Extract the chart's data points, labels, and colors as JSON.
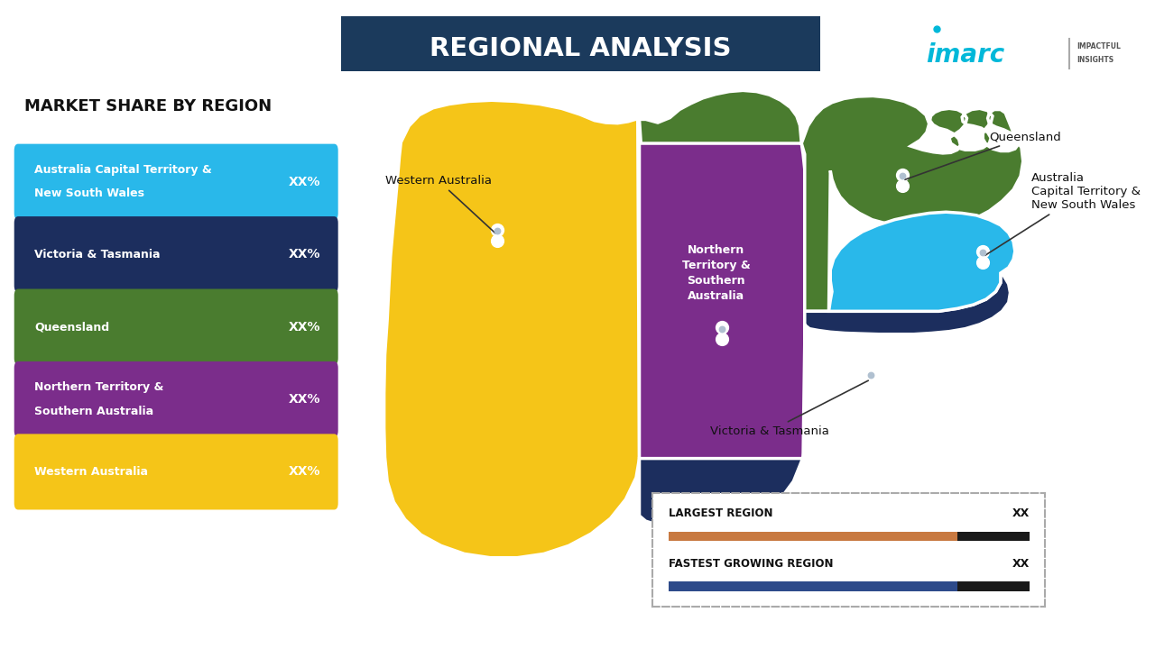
{
  "title": "REGIONAL ANALYSIS",
  "title_bg_color": "#1b3a5c",
  "title_text_color": "#ffffff",
  "background_color": "#ffffff",
  "left_panel_title": "MARKET SHARE BY REGION",
  "regions": [
    {
      "name": "Australia Capital Territory &\nNew South Wales",
      "value": "XX%",
      "color": "#29b8ea",
      "text_color": "#ffffff"
    },
    {
      "name": "Victoria & Tasmania",
      "value": "XX%",
      "color": "#1c2e5e",
      "text_color": "#ffffff"
    },
    {
      "name": "Queensland",
      "value": "XX%",
      "color": "#4a7c2f",
      "text_color": "#ffffff"
    },
    {
      "name": "Northern Territory &\nSouthern Australia",
      "value": "XX%",
      "color": "#7b2d8b",
      "text_color": "#ffffff"
    },
    {
      "name": "Western Australia",
      "value": "XX%",
      "color": "#f5c518",
      "text_color": "#ffffff"
    }
  ],
  "legend_items": [
    {
      "label": "LARGEST REGION",
      "value": "XX",
      "bar_color": "#c87941",
      "bar_end_color": "#1a1a1a"
    },
    {
      "label": "FASTEST GROWING REGION",
      "value": "XX",
      "bar_color": "#2d4a8a",
      "bar_end_color": "#1a1a1a"
    }
  ],
  "imarc_color": "#00b8d9",
  "wa_color": "#f5c518",
  "nt_sa_color": "#7b2d8b",
  "qld_color": "#4a7c2f",
  "vic_color": "#1c2e5e",
  "nsw_color": "#29b8ea",
  "white": "#ffffff"
}
